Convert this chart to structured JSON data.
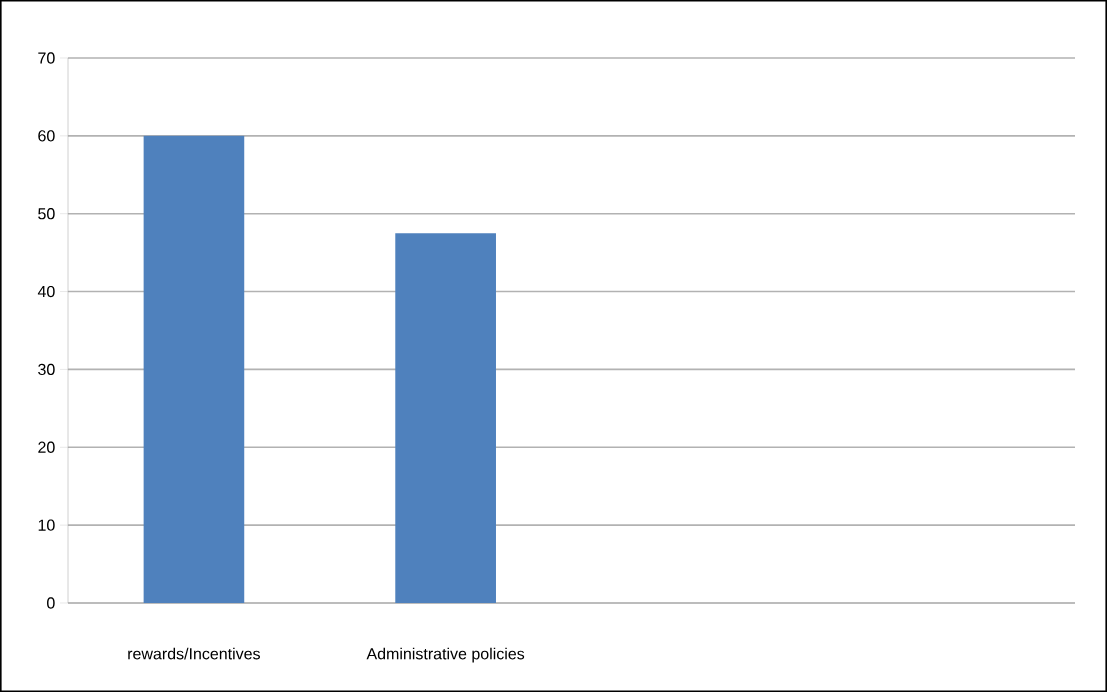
{
  "chart_data": {
    "type": "bar",
    "categories": [
      "rewards/Incentives",
      "Administrative policies",
      null,
      null
    ],
    "values": [
      60,
      47.5,
      null,
      null
    ],
    "color": "#4f81bd",
    "ylim": [
      0,
      70
    ],
    "yticks": [
      0,
      10,
      20,
      30,
      40,
      50,
      60,
      70
    ],
    "grid": "y"
  }
}
